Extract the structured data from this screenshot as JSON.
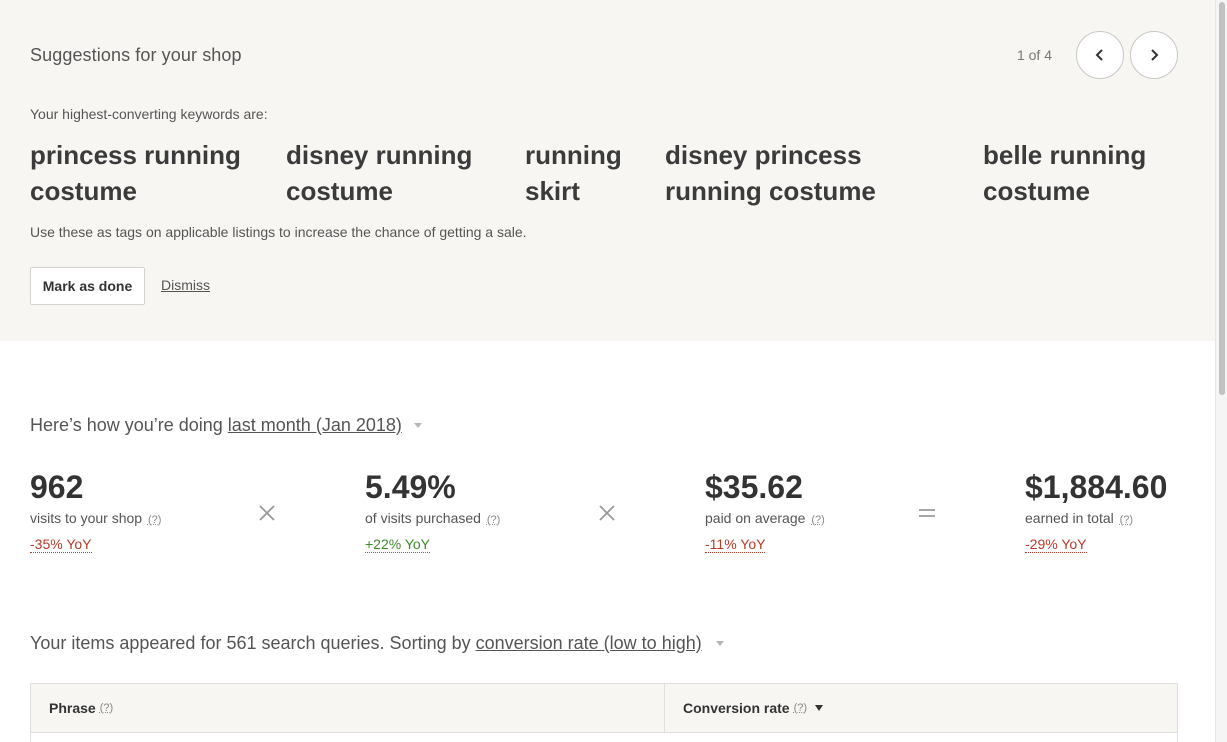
{
  "suggestions": {
    "title": "Suggestions for your shop",
    "pager_count": "1 of 4",
    "keywords_intro": "Your highest-converting keywords are:",
    "keywords": [
      "princess running costume",
      "disney running costume",
      "running skirt",
      "disney princess running costume",
      "belle running costume"
    ],
    "note": "Use these as tags on applicable listings to increase the chance of getting a sale.",
    "mark_done_label": "Mark as done",
    "dismiss_label": "Dismiss"
  },
  "performance": {
    "intro": "Here’s how you’re doing",
    "period": "last month (Jan 2018)",
    "help": "(?)",
    "metrics": [
      {
        "value": "962",
        "label": "visits to your shop",
        "yoy": "-35% YoY",
        "trend": "negative"
      },
      {
        "value": "5.49%",
        "label": "of visits purchased",
        "yoy": "+22% YoY",
        "trend": "positive"
      },
      {
        "value": "$35.62",
        "label": "paid on average",
        "yoy": "-11% YoY",
        "trend": "negative"
      },
      {
        "value": "$1,884.60",
        "label": "earned in total",
        "yoy": "-29% YoY",
        "trend": "negative"
      }
    ]
  },
  "search_queries": {
    "intro": "Your items appeared for 561 search queries. Sorting by",
    "sort_by": "conversion rate (low to high)",
    "columns": [
      {
        "label": "Phrase",
        "help": "(?)"
      },
      {
        "label": "Conversion rate",
        "help": "(?)"
      }
    ]
  },
  "colors": {
    "panel_bg": "#f7f6f3",
    "negative": "#b83a2a",
    "positive": "#3f8a2c"
  }
}
